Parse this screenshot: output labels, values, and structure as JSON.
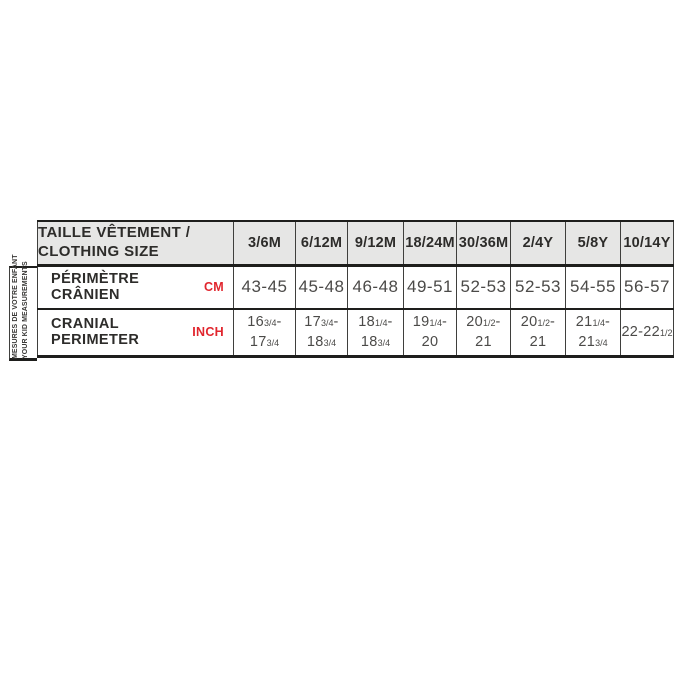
{
  "colors": {
    "header_bg": "#e6e6e5",
    "border_thick": "#1e1e1c",
    "border_thin": "#3f3f3d",
    "label_text": "#2d2c2a",
    "value_text": "#4b4a48",
    "accent_red": "#e1262e"
  },
  "side_label": {
    "line1": "MESURES DE VOTRE ENFANT",
    "line2": "YOUR KID MEASUREMENTS"
  },
  "table": {
    "header_label_line1": "TAILLE VÊTEMENT /",
    "header_label_line2": "CLOTHING SIZE",
    "columns": [
      "3/6M",
      "6/12M",
      "9/12M",
      "18/24M",
      "30/36M",
      "2/4Y",
      "5/8Y",
      "10/14Y"
    ],
    "rows": [
      {
        "label": "PÉRIMÈTRE CRÂNIEN",
        "unit": "CM",
        "values": [
          "43-45",
          "45-48",
          "46-48",
          "49-51",
          "52-53",
          "52-53",
          "54-55",
          "56-57"
        ]
      },
      {
        "label": "CRANIAL PERIMETER",
        "unit": "INCH",
        "values": [
          "163/4-\n173/4",
          "173/4-\n183/4",
          "181/4-\n183/4",
          "191/4-\n20",
          "201/2-\n21",
          "201/2-\n21",
          "211/4-\n213/4",
          "22-221/2"
        ]
      }
    ]
  }
}
